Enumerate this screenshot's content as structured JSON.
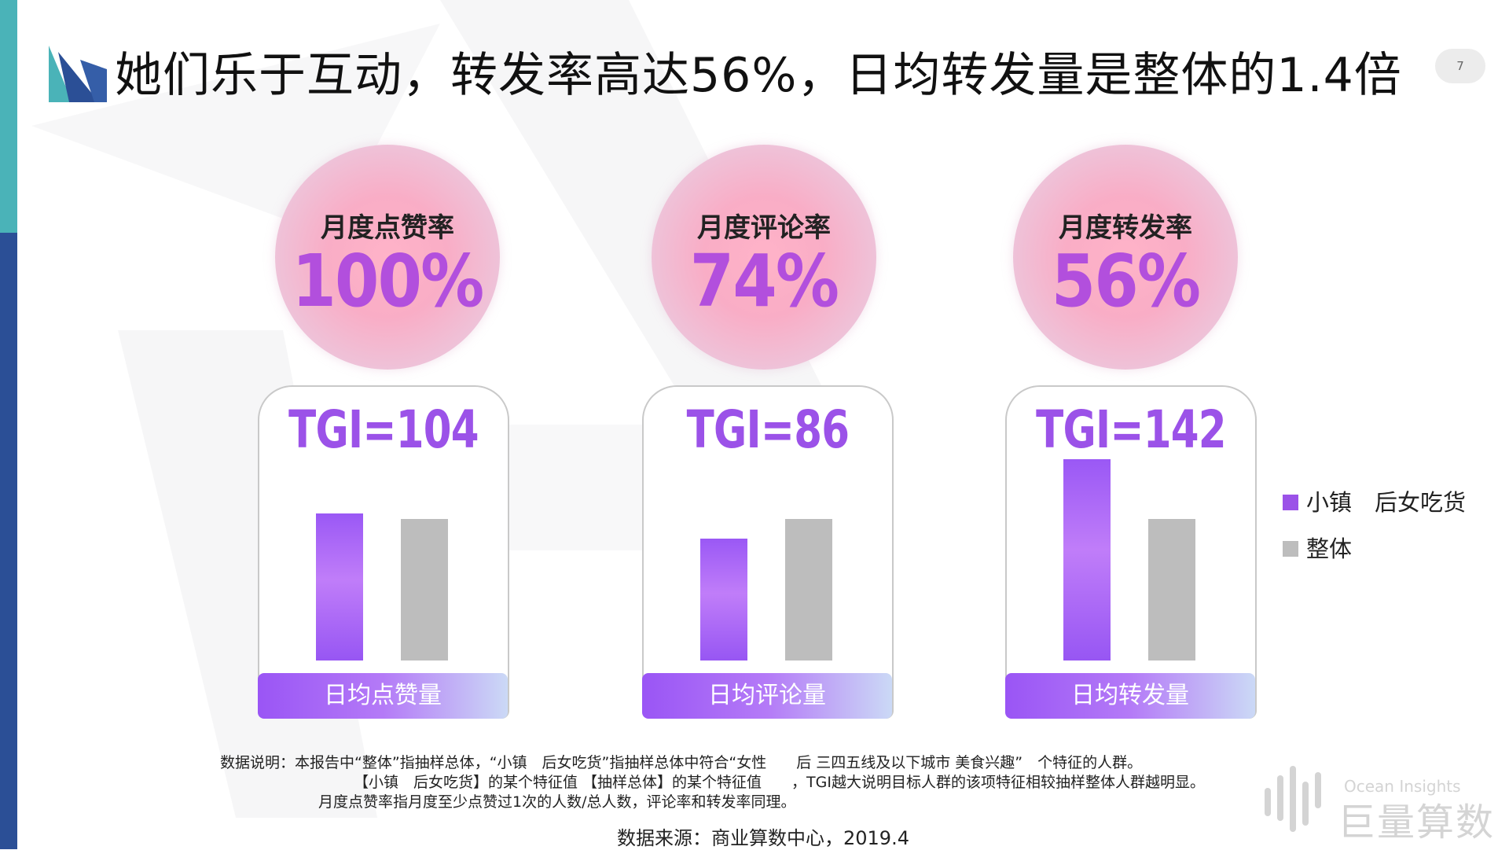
{
  "title": "她们乐于互动，转发率高达56%，日均转发量是整体的1.4倍",
  "page_number": "7",
  "colors": {
    "primary_series": "#9b52e8",
    "secondary_series": "#bdbdbd",
    "side_teal": "#4ab3b8",
    "side_blue": "#2b4f96"
  },
  "metrics": [
    {
      "label": "月度点赞率",
      "value": "100%"
    },
    {
      "label": "月度评论率",
      "value": "74%"
    },
    {
      "label": "月度转发率",
      "value": "56%"
    }
  ],
  "chart_data": {
    "type": "bar",
    "panels": [
      {
        "tgi_text": "TGI=104",
        "category": "日均点赞量",
        "values": [
          104,
          100
        ]
      },
      {
        "tgi_text": "TGI=86",
        "category": "日均评论量",
        "values": [
          86,
          100
        ]
      },
      {
        "tgi_text": "TGI=142",
        "category": "日均转发量",
        "values": [
          142,
          100
        ]
      }
    ],
    "series": [
      {
        "name": "小镇　后女吃货",
        "color": "#9b52e8"
      },
      {
        "name": "整体",
        "color": "#bdbdbd"
      }
    ],
    "legend_position": "right",
    "grid": false
  },
  "notes": [
    "数据说明：本报告中“整体”指抽样总体，“小镇　后女吃货”指抽样总体中符合“女性　　后 三四五线及以下城市 美食兴趣”　个特征的人群。",
    "【小镇　后女吃货】的某个特征值 【抽样总体】的某个特征值　　，TGI越大说明目标人群的该项特征相较抽样整体人群越明显。",
    "月度点赞率指月度至少点赞过1次的人数/总人数，评论率和转发率同理。"
  ],
  "source": "数据来源：商业算数中心，2019.4",
  "brand": {
    "en": "Ocean Insights",
    "cn": "巨量算数"
  }
}
